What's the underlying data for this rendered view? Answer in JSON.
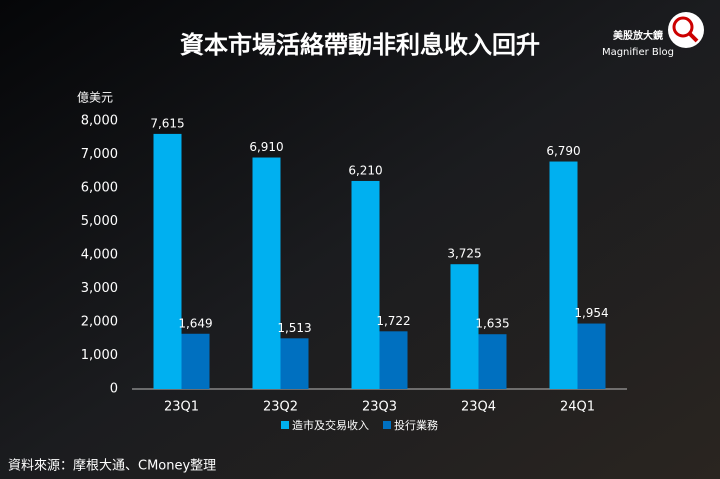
{
  "chart_data": {
    "type": "bar",
    "title": "資本市場活絡帶動非利息收入回升",
    "y_label": "億美元",
    "categories": [
      "23Q1",
      "23Q2",
      "23Q3",
      "23Q4",
      "24Q1"
    ],
    "series": [
      {
        "name": "造市及交易收入",
        "color": "#00b0f0",
        "values": [
          7615,
          6910,
          6210,
          3725,
          6790
        ],
        "value_labels": [
          "7,615",
          "6,910",
          "6,210",
          "3,725",
          "6,790"
        ]
      },
      {
        "name": "投行業務",
        "color": "#0070c0",
        "values": [
          1649,
          1513,
          1722,
          1635,
          1954
        ],
        "value_labels": [
          "1,649",
          "1,513",
          "1,722",
          "1,635",
          "1,954"
        ]
      }
    ],
    "ylim": [
      0,
      8000
    ],
    "yticks": [
      0,
      {
        "value": 1000,
        "label": "1,000"
      },
      {
        "value": 2000,
        "label": "2,000"
      },
      {
        "value": 3000,
        "label": "3,000"
      },
      {
        "value": 4000,
        "label": "4,000"
      },
      {
        "value": 5000,
        "label": "5,000"
      },
      {
        "value": 6000,
        "label": "6,000"
      },
      {
        "value": 7000,
        "label": "7,000"
      },
      {
        "value": 8000,
        "label": "8,000"
      }
    ],
    "source": "資料來源：摩根大通、CMoney整理"
  },
  "logo": {
    "title": "美股放大鏡",
    "subtitle": "Magnifier Blog"
  }
}
